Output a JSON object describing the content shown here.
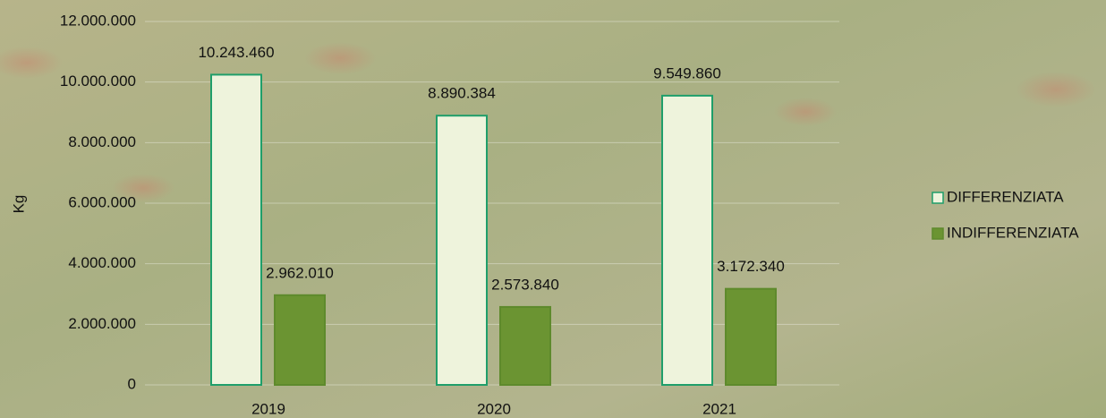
{
  "chart_data": {
    "type": "bar",
    "y_label": "Kg",
    "categories": [
      "2019",
      "2020",
      "2021"
    ],
    "series": [
      {
        "name": "DIFFERENZIATA",
        "color": "#eef3dc",
        "edge": "#1f9e6a",
        "values": [
          10243460,
          8890384,
          9549860
        ],
        "value_labels": [
          "10.243.460",
          "8.890.384",
          "9.549.860"
        ]
      },
      {
        "name": "INDIFFERENZIATA",
        "color": "#6b9432",
        "edge": "#5e8a2c",
        "values": [
          2962010,
          2573840,
          3172340
        ],
        "value_labels": [
          "2.962.010",
          "2.573.840",
          "3.172.340"
        ]
      }
    ],
    "ylim": [
      0,
      12000000
    ],
    "yticks": [
      {
        "value": 0,
        "label": "0"
      },
      {
        "value": 2000000,
        "label": "2.000.000"
      },
      {
        "value": 4000000,
        "label": "4.000.000"
      },
      {
        "value": 6000000,
        "label": "6.000.000"
      },
      {
        "value": 8000000,
        "label": "8.000.000"
      },
      {
        "value": 10000000,
        "label": "10.000.000"
      },
      {
        "value": 12000000,
        "label": "12.000.000"
      }
    ],
    "grid": true,
    "legend": "right"
  }
}
